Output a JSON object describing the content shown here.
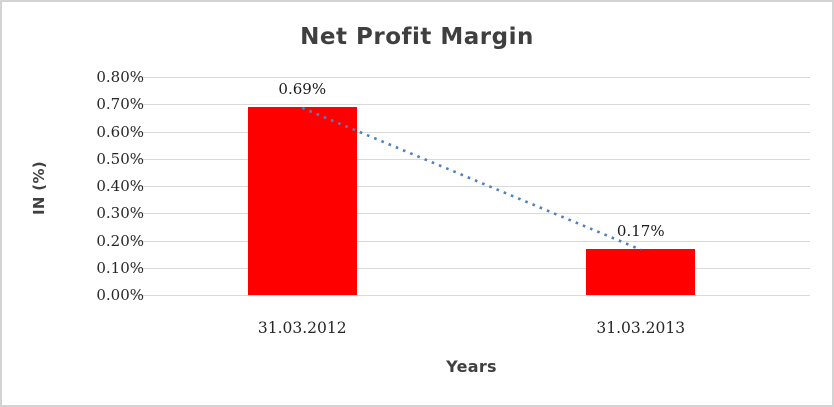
{
  "chart_data": {
    "type": "bar",
    "title": "Net Profit Margin",
    "xlabel": "Years",
    "ylabel": "IN (%)",
    "categories": [
      "31.03.2012",
      "31.03.2013"
    ],
    "series": [
      {
        "name": "Net Profit Margin",
        "values": [
          0.69,
          0.17
        ]
      }
    ],
    "data_labels": [
      "0.69%",
      "0.17%"
    ],
    "y_ticks": [
      "0.80%",
      "0.70%",
      "0.60%",
      "0.50%",
      "0.40%",
      "0.30%",
      "0.20%",
      "0.10%",
      "0.00%"
    ],
    "ylim": [
      0,
      0.8
    ],
    "grid": true,
    "legend": "none",
    "bar_color": "#ff0000",
    "gridline_color": "#d9d9d9",
    "trendline": {
      "style": "dotted",
      "color": "#4f81bd",
      "from_value": 0.69,
      "to_value": 0.17
    },
    "frame_color": "#d3d3d3"
  }
}
